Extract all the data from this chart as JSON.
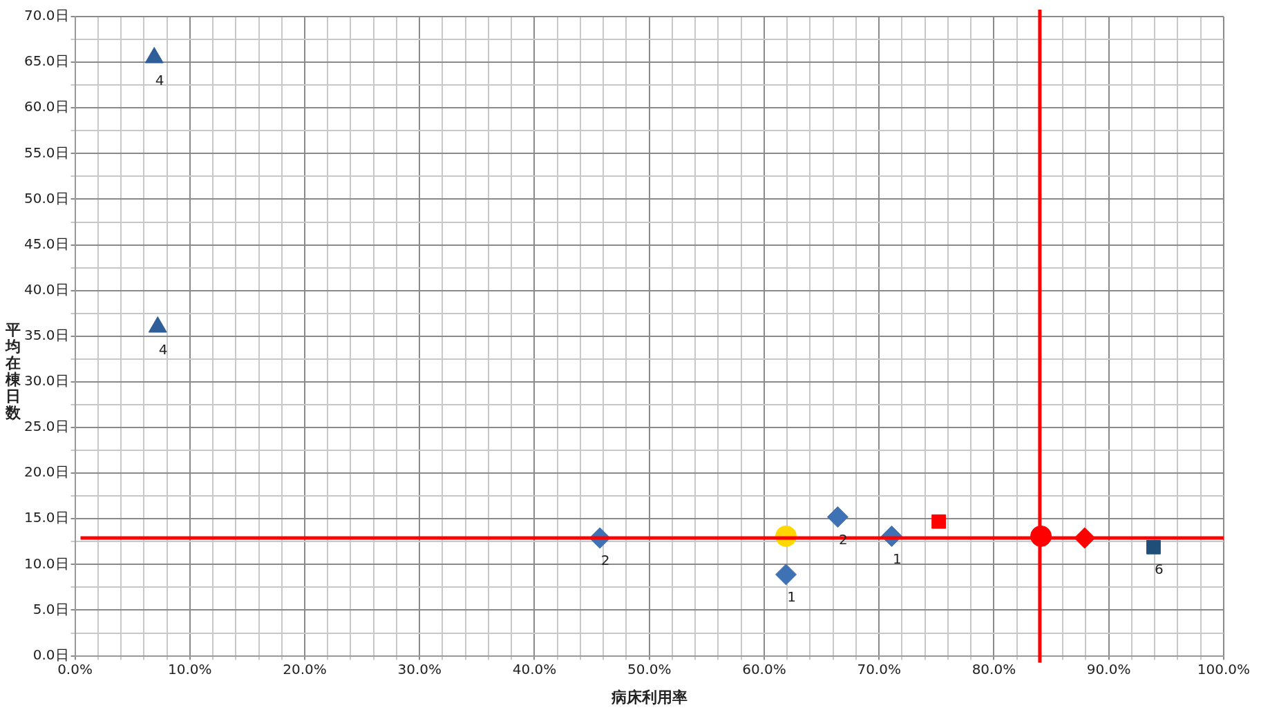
{
  "chart_data": {
    "type": "scatter",
    "xlabel": "病床利用率",
    "ylabel": "平均在棟日数",
    "xlim": [
      0,
      100
    ],
    "ylim": [
      0,
      70
    ],
    "xticks": [
      {
        "value": 0,
        "label": "0.0%"
      },
      {
        "value": 2,
        "label": null
      },
      {
        "value": 4,
        "label": null
      },
      {
        "value": 6,
        "label": null
      },
      {
        "value": 8,
        "label": null
      },
      {
        "value": 10,
        "label": "10.0%"
      },
      {
        "value": 12,
        "label": null
      },
      {
        "value": 14,
        "label": null
      },
      {
        "value": 16,
        "label": null
      },
      {
        "value": 18,
        "label": null
      },
      {
        "value": 20,
        "label": "20.0%"
      },
      {
        "value": 22,
        "label": null
      },
      {
        "value": 24,
        "label": null
      },
      {
        "value": 26,
        "label": null
      },
      {
        "value": 28,
        "label": null
      },
      {
        "value": 30,
        "label": "30.0%"
      },
      {
        "value": 32,
        "label": null
      },
      {
        "value": 34,
        "label": null
      },
      {
        "value": 36,
        "label": null
      },
      {
        "value": 38,
        "label": null
      },
      {
        "value": 40,
        "label": "40.0%"
      },
      {
        "value": 42,
        "label": null
      },
      {
        "value": 44,
        "label": null
      },
      {
        "value": 46,
        "label": null
      },
      {
        "value": 48,
        "label": null
      },
      {
        "value": 50,
        "label": "50.0%"
      },
      {
        "value": 52,
        "label": null
      },
      {
        "value": 54,
        "label": null
      },
      {
        "value": 56,
        "label": null
      },
      {
        "value": 58,
        "label": null
      },
      {
        "value": 60,
        "label": "60.0%"
      },
      {
        "value": 62,
        "label": null
      },
      {
        "value": 64,
        "label": null
      },
      {
        "value": 66,
        "label": null
      },
      {
        "value": 68,
        "label": null
      },
      {
        "value": 70,
        "label": "70.0%"
      },
      {
        "value": 72,
        "label": null
      },
      {
        "value": 74,
        "label": null
      },
      {
        "value": 76,
        "label": null
      },
      {
        "value": 78,
        "label": null
      },
      {
        "value": 80,
        "label": "80.0%"
      },
      {
        "value": 82,
        "label": null
      },
      {
        "value": 84,
        "label": null
      },
      {
        "value": 86,
        "label": null
      },
      {
        "value": 88,
        "label": null
      },
      {
        "value": 90,
        "label": "90.0%"
      },
      {
        "value": 92,
        "label": null
      },
      {
        "value": 94,
        "label": null
      },
      {
        "value": 96,
        "label": null
      },
      {
        "value": 98,
        "label": null
      },
      {
        "value": 100,
        "label": "100.0%"
      }
    ],
    "yticks": [
      {
        "value": 0,
        "label": "0.0日"
      },
      {
        "value": 2.5,
        "label": null
      },
      {
        "value": 5,
        "label": "5.0日"
      },
      {
        "value": 7.5,
        "label": null
      },
      {
        "value": 10,
        "label": "10.0日"
      },
      {
        "value": 12.5,
        "label": null
      },
      {
        "value": 15,
        "label": "15.0日"
      },
      {
        "value": 17.5,
        "label": null
      },
      {
        "value": 20,
        "label": "20.0日"
      },
      {
        "value": 22.5,
        "label": null
      },
      {
        "value": 25,
        "label": "25.0日"
      },
      {
        "value": 27.5,
        "label": null
      },
      {
        "value": 30,
        "label": "30.0日"
      },
      {
        "value": 32.5,
        "label": null
      },
      {
        "value": 35,
        "label": "35.0日"
      },
      {
        "value": 37.5,
        "label": null
      },
      {
        "value": 40,
        "label": "40.0日"
      },
      {
        "value": 42.5,
        "label": null
      },
      {
        "value": 45,
        "label": "45.0日"
      },
      {
        "value": 47.5,
        "label": null
      },
      {
        "value": 50,
        "label": "50.0日"
      },
      {
        "value": 52.5,
        "label": null
      },
      {
        "value": 55,
        "label": "55.0日"
      },
      {
        "value": 57.5,
        "label": null
      },
      {
        "value": 60,
        "label": "60.0日"
      },
      {
        "value": 62.5,
        "label": null
      },
      {
        "value": 65,
        "label": "65.0日"
      },
      {
        "value": 67.5,
        "label": null
      },
      {
        "value": 70,
        "label": "70.0日"
      }
    ],
    "grid": true,
    "legend": false,
    "series": [
      {
        "color": "#2f5f98",
        "marker": "triangle",
        "x": [
          6.9,
          7.2
        ],
        "values": [
          65.5,
          36.0
        ]
      },
      {
        "color": "#3f72b5",
        "marker": "diamond",
        "x": [
          45.7,
          61.9,
          66.4,
          71.1
        ],
        "values": [
          12.9,
          8.9,
          15.2,
          13.1
        ]
      },
      {
        "color": "#ffd700",
        "marker": "circle",
        "x": [
          61.9
        ],
        "values": [
          13.1
        ]
      },
      {
        "color": "#ff0000",
        "marker": "square",
        "x": [
          75.2
        ],
        "values": [
          14.7
        ]
      },
      {
        "color": "#ff0000",
        "marker": "circle",
        "x": [
          84.1
        ],
        "values": [
          13.1
        ]
      },
      {
        "color": "#ff0000",
        "marker": "diamond",
        "x": [
          87.9
        ],
        "values": [
          12.9
        ]
      },
      {
        "color": "#1f4e79",
        "marker": "square",
        "x": [
          93.9
        ],
        "values": [
          11.9
        ]
      }
    ],
    "ref_lines": [
      {
        "axis": "y",
        "value": 12.9,
        "color": "#ff0000"
      },
      {
        "axis": "x",
        "value": 84.0,
        "color": "#ff0000"
      }
    ],
    "annotations": [
      {
        "text": "4",
        "x": 6.9,
        "y": 65.5
      },
      {
        "text": "4",
        "x": 7.2,
        "y": 36.0
      },
      {
        "text": "2",
        "x": 45.7,
        "y": 12.9
      },
      {
        "text": "1",
        "x": 61.9,
        "y": 8.9
      },
      {
        "text": "2",
        "x": 66.4,
        "y": 15.2
      },
      {
        "text": "1",
        "x": 71.1,
        "y": 13.1
      },
      {
        "text": "6",
        "x": 93.9,
        "y": 11.9
      }
    ]
  }
}
